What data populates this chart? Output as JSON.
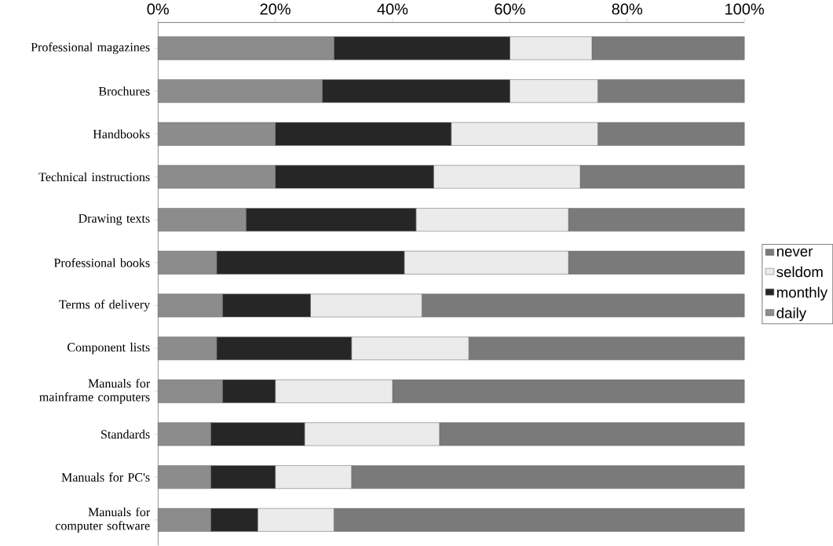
{
  "chart_data": {
    "type": "bar",
    "orientation": "horizontal",
    "stacked": true,
    "categories": [
      "Professional magazines",
      "Brochures",
      "Handbooks",
      "Technical instructions",
      "Drawing texts",
      "Professional books",
      "Terms of delivery",
      "Component lists",
      "Manuals for mainframe computers",
      "Standards",
      "Manuals for PC's",
      "Manuals for computer software"
    ],
    "series": [
      {
        "name": "daily",
        "color": "#8c8c8c",
        "values": [
          30,
          28,
          20,
          20,
          15,
          10,
          11,
          10,
          11,
          9,
          9,
          9
        ]
      },
      {
        "name": "monthly",
        "color": "#262626",
        "values": [
          30,
          32,
          30,
          27,
          29,
          32,
          15,
          23,
          9,
          16,
          11,
          8
        ]
      },
      {
        "name": "seldom",
        "color": "#ebebeb",
        "values": [
          14,
          15,
          25,
          25,
          26,
          28,
          19,
          20,
          20,
          23,
          13,
          13
        ]
      },
      {
        "name": "never",
        "color": "#7a7a7a",
        "values": [
          26,
          25,
          25,
          28,
          30,
          30,
          55,
          47,
          60,
          52,
          67,
          70
        ]
      }
    ],
    "xlim": [
      0,
      100
    ],
    "xticks": [
      {
        "value": 0,
        "label": "0%"
      },
      {
        "value": 20,
        "label": "20%"
      },
      {
        "value": 40,
        "label": "40%"
      },
      {
        "value": 60,
        "label": "60%"
      },
      {
        "value": 80,
        "label": "80%"
      },
      {
        "value": 100,
        "label": "100%"
      }
    ],
    "legend": "right",
    "grid": false
  }
}
